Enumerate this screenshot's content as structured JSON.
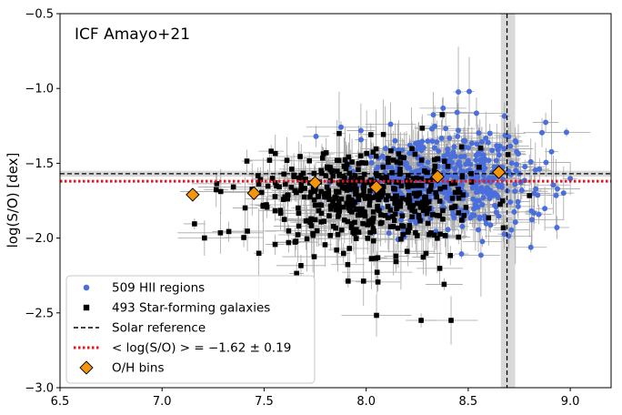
{
  "chart_data": {
    "type": "scatter",
    "annotation": "ICF Amayo+21",
    "xlabel": "",
    "ylabel": "log(S/O) [dex]",
    "xlim": [
      6.5,
      9.2
    ],
    "ylim": [
      -3.0,
      -0.5
    ],
    "xticks": [
      6.5,
      7.0,
      7.5,
      8.0,
      8.5,
      9.0
    ],
    "xtick_labels": [
      "6.5",
      "7.0",
      "7.5",
      "8.0",
      "8.5",
      "9.0"
    ],
    "yticks": [
      -3.0,
      -2.5,
      -2.0,
      -1.5,
      -1.0,
      -0.5
    ],
    "ytick_labels": [
      "−3.0",
      "−2.5",
      "−2.0",
      "−1.5",
      "−1.0",
      "−0.5"
    ],
    "grid": false,
    "legend_position": "lower-left",
    "legend": [
      {
        "label": "509 HII regions",
        "marker": "circle",
        "color": "#4a6fdc"
      },
      {
        "label": "493 Star-forming galaxies",
        "marker": "square",
        "color": "#000000"
      },
      {
        "label": "Solar reference",
        "marker": "dashed-line",
        "color": "#000000"
      },
      {
        "label": "< log(S/O) > = −1.62 ± 0.19",
        "marker": "dotted-line",
        "color": "#e8141e"
      },
      {
        "label": "O/H bins",
        "marker": "diamond",
        "color": "#f5960a"
      }
    ],
    "reference_lines": {
      "solar_log_so": -1.57,
      "solar_log_so_band": [
        -1.59,
        -1.55
      ],
      "solar_oh": 8.69,
      "solar_oh_band": [
        8.66,
        8.73
      ],
      "mean_log_so": -1.62,
      "mean_log_so_std": 0.19
    },
    "colors": {
      "hii": "#4a6fdc",
      "sfg": "#000000",
      "errorbar": "#a6a6a6",
      "mean": "#e8141e",
      "bins": "#f5960a",
      "band": "#d9d9d9"
    },
    "series": [
      {
        "name": "509 HII regions",
        "count": 509,
        "cloud": {
          "x_mean": 8.4,
          "x_sd": 0.22,
          "y_mean": -1.6,
          "y_sd": 0.17
        }
      },
      {
        "name": "493 Star-forming galaxies",
        "count": 493,
        "cloud": {
          "x_mean": 8.0,
          "x_sd": 0.28,
          "y_mean": -1.72,
          "y_sd": 0.16
        }
      },
      {
        "name": "O/H bins",
        "x": [
          7.15,
          7.45,
          7.75,
          8.05,
          8.35,
          8.65
        ],
        "y": [
          -1.71,
          -1.7,
          -1.63,
          -1.66,
          -1.59,
          -1.56
        ]
      }
    ]
  }
}
